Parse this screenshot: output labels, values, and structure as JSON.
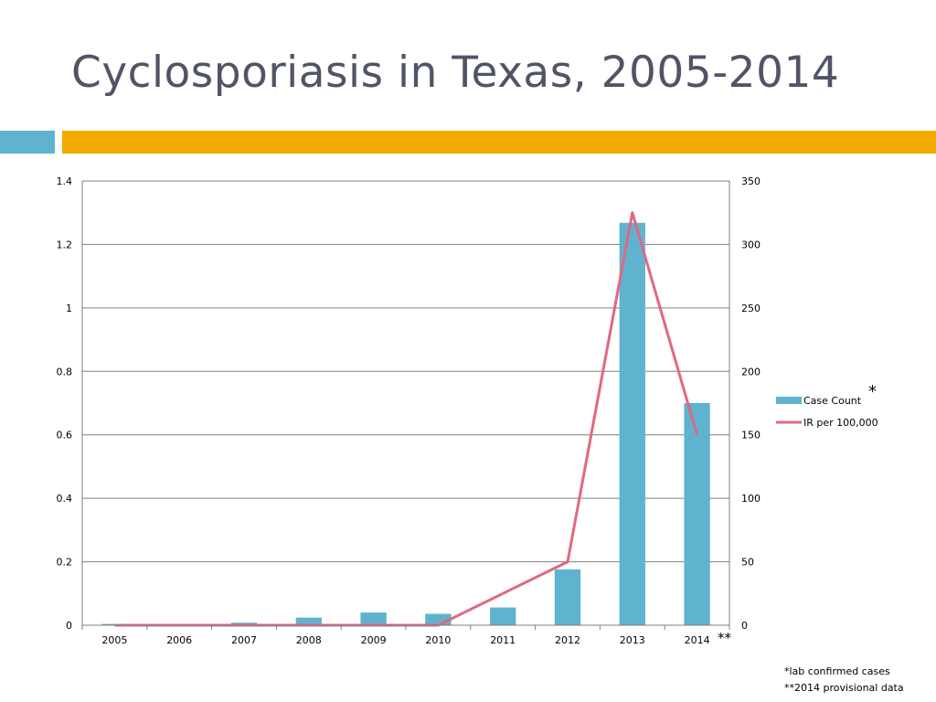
{
  "slide": {
    "title": "Cyclosporiasis in Texas, 2005-2014",
    "footnotes": [
      "*lab confirmed cases",
      "**2014 provisional data"
    ],
    "legend_marker": "*",
    "xaxis_marker": "**"
  },
  "colors": {
    "title": "#515467",
    "accent_blue": "#5fb3cf",
    "accent_gold": "#f0ab00",
    "bar": "#5fb3cf",
    "line": "#e06880",
    "grid": "#7f7f7f"
  },
  "chart_data": {
    "type": "bar",
    "title": "",
    "xlabel": "",
    "categories": [
      "2005",
      "2006",
      "2007",
      "2008",
      "2009",
      "2010",
      "2011",
      "2012",
      "2013",
      "2014"
    ],
    "series": [
      {
        "name": "Case Count",
        "type": "bar",
        "axis": "right",
        "values": [
          1,
          1,
          2,
          6,
          10,
          9,
          14,
          44,
          317,
          175
        ]
      },
      {
        "name": "IR per 100,000",
        "type": "line",
        "axis": "left",
        "values": [
          0,
          0,
          0,
          0,
          0,
          0,
          0.1,
          0.2,
          1.3,
          0.6
        ]
      }
    ],
    "y_left": {
      "ylim": [
        0,
        1.4
      ],
      "ticks": [
        "0",
        "0.2",
        "0.4",
        "0.6",
        "0.8",
        "1",
        "1.2",
        "1.4"
      ]
    },
    "y_right": {
      "ylim": [
        0,
        350
      ],
      "ticks": [
        "0",
        "50",
        "100",
        "150",
        "200",
        "250",
        "300",
        "350"
      ]
    },
    "grid": true,
    "legend_position": "right"
  }
}
